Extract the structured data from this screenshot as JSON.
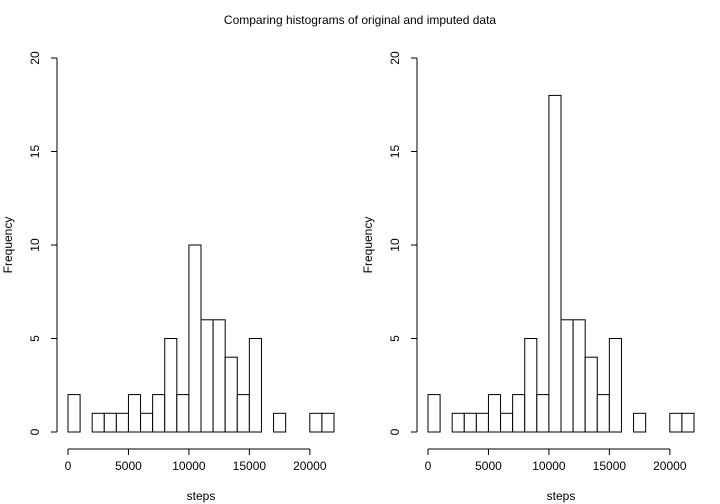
{
  "page": {
    "title": "Comparing histograms of original and imputed data"
  },
  "chart_data": [
    {
      "type": "bar",
      "histogram": true,
      "bin_width": 1000,
      "bin_starts": [
        0,
        1000,
        2000,
        3000,
        4000,
        5000,
        6000,
        7000,
        8000,
        9000,
        10000,
        11000,
        12000,
        13000,
        14000,
        15000,
        16000,
        17000,
        18000,
        19000,
        20000,
        21000
      ],
      "values": [
        2,
        0,
        1,
        1,
        1,
        2,
        1,
        2,
        5,
        2,
        10,
        6,
        6,
        4,
        2,
        5,
        0,
        1,
        0,
        0,
        1,
        1
      ],
      "xlabel": "steps",
      "ylabel": "Frequency",
      "xlim": [
        0,
        22000
      ],
      "ylim": [
        0,
        20
      ],
      "xticks": [
        "0",
        "5000",
        "10000",
        "15000",
        "20000"
      ],
      "yticks": [
        "0",
        "5",
        "10",
        "15",
        "20"
      ],
      "grid": false,
      "bar_fill": "#ffffff",
      "bar_stroke": "#000000"
    },
    {
      "type": "bar",
      "histogram": true,
      "bin_width": 1000,
      "bin_starts": [
        0,
        1000,
        2000,
        3000,
        4000,
        5000,
        6000,
        7000,
        8000,
        9000,
        10000,
        11000,
        12000,
        13000,
        14000,
        15000,
        16000,
        17000,
        18000,
        19000,
        20000,
        21000
      ],
      "values": [
        2,
        0,
        1,
        1,
        1,
        2,
        1,
        2,
        5,
        2,
        18,
        6,
        6,
        4,
        2,
        5,
        0,
        1,
        0,
        0,
        1,
        1
      ],
      "xlabel": "steps",
      "ylabel": "Frequency",
      "xlim": [
        0,
        22000
      ],
      "ylim": [
        0,
        20
      ],
      "xticks": [
        "0",
        "5000",
        "10000",
        "15000",
        "20000"
      ],
      "yticks": [
        "0",
        "5",
        "10",
        "15",
        "20"
      ],
      "grid": false,
      "bar_fill": "#ffffff",
      "bar_stroke": "#000000"
    }
  ]
}
